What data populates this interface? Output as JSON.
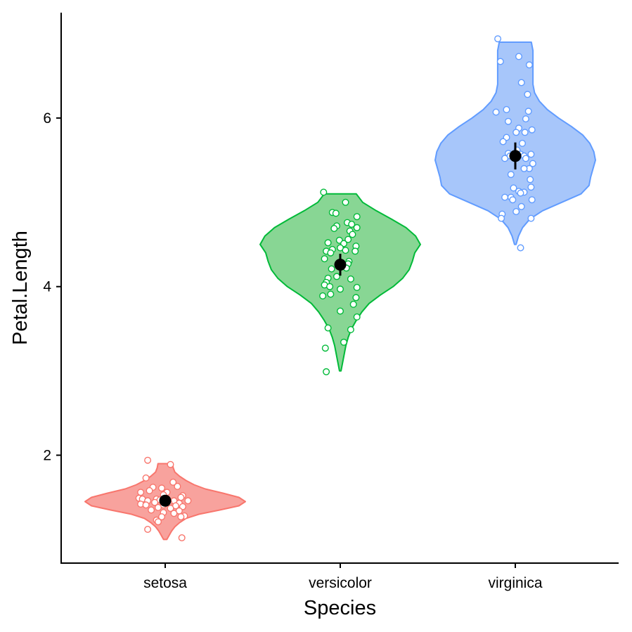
{
  "chart_data": {
    "type": "violin",
    "xlabel": "Species",
    "ylabel": "Petal.Length",
    "categories": [
      "setosa",
      "versicolor",
      "virginica"
    ],
    "ylim": [
      0.72,
      7.25
    ],
    "yticks": [
      2,
      4,
      6
    ],
    "grid": false,
    "legend": "none",
    "series": [
      {
        "category": "setosa",
        "color": "#F8766D",
        "fill": "#F8A29D",
        "mean": 1.46,
        "ci": [
          1.41,
          1.51
        ],
        "range": [
          1.0,
          1.9
        ],
        "density_profile": [
          [
            1.0,
            0.02
          ],
          [
            1.05,
            0.05
          ],
          [
            1.1,
            0.08
          ],
          [
            1.15,
            0.12
          ],
          [
            1.2,
            0.18
          ],
          [
            1.25,
            0.26
          ],
          [
            1.3,
            0.42
          ],
          [
            1.35,
            0.68
          ],
          [
            1.4,
            0.92
          ],
          [
            1.45,
            1.0
          ],
          [
            1.5,
            0.92
          ],
          [
            1.55,
            0.72
          ],
          [
            1.6,
            0.5
          ],
          [
            1.65,
            0.36
          ],
          [
            1.7,
            0.26
          ],
          [
            1.75,
            0.18
          ],
          [
            1.8,
            0.12
          ],
          [
            1.85,
            0.1
          ],
          [
            1.9,
            0.09
          ]
        ],
        "points": [
          [
            -0.2,
            1.94
          ],
          [
            0.06,
            1.89
          ],
          [
            -0.22,
            1.73
          ],
          [
            0.09,
            1.68
          ],
          [
            0.14,
            1.63
          ],
          [
            -0.14,
            1.62
          ],
          [
            -0.04,
            1.61
          ],
          [
            -0.18,
            1.58
          ],
          [
            -0.28,
            1.56
          ],
          [
            0.02,
            1.56
          ],
          [
            -0.02,
            1.53
          ],
          [
            0.2,
            1.52
          ],
          [
            0.18,
            1.5
          ],
          [
            -0.3,
            1.49
          ],
          [
            -0.26,
            1.48
          ],
          [
            -0.1,
            1.48
          ],
          [
            -0.06,
            1.47
          ],
          [
            -0.2,
            1.46
          ],
          [
            0.1,
            1.46
          ],
          [
            0.26,
            1.46
          ],
          [
            -0.12,
            1.44
          ],
          [
            0.04,
            1.44
          ],
          [
            0.16,
            1.43
          ],
          [
            -0.28,
            1.42
          ],
          [
            -0.22,
            1.41
          ],
          [
            -0.02,
            1.41
          ],
          [
            0.12,
            1.4
          ],
          [
            0.2,
            1.39
          ],
          [
            -0.08,
            1.38
          ],
          [
            0.06,
            1.37
          ],
          [
            -0.16,
            1.35
          ],
          [
            0.16,
            1.34
          ],
          [
            -0.02,
            1.32
          ],
          [
            0.1,
            1.31
          ],
          [
            0.22,
            1.28
          ],
          [
            -0.04,
            1.27
          ],
          [
            0.18,
            1.27
          ],
          [
            -0.1,
            1.23
          ],
          [
            -0.08,
            1.21
          ],
          [
            -0.2,
            1.12
          ],
          [
            0.19,
            1.02
          ]
        ]
      },
      {
        "category": "versicolor",
        "color": "#00BA38",
        "fill": "#88D694",
        "mean": 4.26,
        "ci": [
          4.13,
          4.39
        ],
        "range": [
          3.0,
          5.1
        ],
        "density_profile": [
          [
            3.0,
            0.01
          ],
          [
            3.1,
            0.03
          ],
          [
            3.2,
            0.05
          ],
          [
            3.3,
            0.07
          ],
          [
            3.4,
            0.1
          ],
          [
            3.5,
            0.14
          ],
          [
            3.6,
            0.2
          ],
          [
            3.7,
            0.27
          ],
          [
            3.8,
            0.36
          ],
          [
            3.9,
            0.5
          ],
          [
            4.0,
            0.66
          ],
          [
            4.1,
            0.78
          ],
          [
            4.2,
            0.86
          ],
          [
            4.3,
            0.9
          ],
          [
            4.4,
            0.93
          ],
          [
            4.5,
            1.0
          ],
          [
            4.6,
            0.94
          ],
          [
            4.7,
            0.82
          ],
          [
            4.8,
            0.64
          ],
          [
            4.9,
            0.45
          ],
          [
            5.0,
            0.28
          ],
          [
            5.1,
            0.2
          ]
        ],
        "points": [
          [
            -0.19,
            5.12
          ],
          [
            0.06,
            5.0
          ],
          [
            -0.09,
            4.88
          ],
          [
            -0.05,
            4.87
          ],
          [
            0.19,
            4.83
          ],
          [
            0.08,
            4.76
          ],
          [
            0.13,
            4.74
          ],
          [
            -0.04,
            4.72
          ],
          [
            0.19,
            4.7
          ],
          [
            -0.07,
            4.69
          ],
          [
            0.11,
            4.66
          ],
          [
            0.14,
            4.62
          ],
          [
            0.09,
            4.56
          ],
          [
            -0.01,
            4.55
          ],
          [
            -0.14,
            4.52
          ],
          [
            0.04,
            4.51
          ],
          [
            0.18,
            4.48
          ],
          [
            0.0,
            4.46
          ],
          [
            -0.09,
            4.44
          ],
          [
            0.06,
            4.43
          ],
          [
            -0.16,
            4.42
          ],
          [
            0.17,
            4.42
          ],
          [
            -0.11,
            4.4
          ],
          [
            -0.18,
            4.33
          ],
          [
            0.1,
            4.3
          ],
          [
            0.09,
            4.27
          ],
          [
            0.07,
            4.22
          ],
          [
            -0.1,
            4.21
          ],
          [
            -0.04,
            4.12
          ],
          [
            -0.14,
            4.1
          ],
          [
            0.12,
            4.09
          ],
          [
            -0.16,
            4.05
          ],
          [
            -0.18,
            4.02
          ],
          [
            -0.12,
            4.0
          ],
          [
            0.19,
            3.99
          ],
          [
            0.0,
            3.97
          ],
          [
            -0.11,
            3.91
          ],
          [
            -0.2,
            3.89
          ],
          [
            0.18,
            3.87
          ],
          [
            0.15,
            3.79
          ],
          [
            0.0,
            3.71
          ],
          [
            0.19,
            3.64
          ],
          [
            -0.14,
            3.51
          ],
          [
            0.12,
            3.49
          ],
          [
            0.04,
            3.34
          ],
          [
            -0.17,
            3.27
          ],
          [
            -0.16,
            2.99
          ]
        ]
      },
      {
        "category": "virginica",
        "color": "#619CFF",
        "fill": "#A7C6FA",
        "mean": 5.55,
        "ci": [
          5.39,
          5.71
        ],
        "range": [
          4.5,
          6.9
        ],
        "density_profile": [
          [
            4.5,
            0.01
          ],
          [
            4.6,
            0.04
          ],
          [
            4.7,
            0.09
          ],
          [
            4.8,
            0.18
          ],
          [
            4.9,
            0.34
          ],
          [
            5.0,
            0.58
          ],
          [
            5.1,
            0.82
          ],
          [
            5.2,
            0.92
          ],
          [
            5.3,
            0.94
          ],
          [
            5.4,
            0.97
          ],
          [
            5.5,
            1.0
          ],
          [
            5.6,
            0.98
          ],
          [
            5.7,
            0.93
          ],
          [
            5.8,
            0.84
          ],
          [
            5.9,
            0.7
          ],
          [
            6.0,
            0.54
          ],
          [
            6.1,
            0.4
          ],
          [
            6.2,
            0.3
          ],
          [
            6.3,
            0.24
          ],
          [
            6.4,
            0.22
          ],
          [
            6.5,
            0.22
          ],
          [
            6.6,
            0.22
          ],
          [
            6.7,
            0.22
          ],
          [
            6.8,
            0.22
          ],
          [
            6.9,
            0.2
          ]
        ],
        "points": [
          [
            -0.2,
            6.94
          ],
          [
            0.04,
            6.73
          ],
          [
            -0.17,
            6.67
          ],
          [
            0.16,
            6.63
          ],
          [
            0.07,
            6.42
          ],
          [
            0.14,
            6.28
          ],
          [
            -0.1,
            6.1
          ],
          [
            -0.22,
            6.07
          ],
          [
            0.15,
            6.08
          ],
          [
            0.12,
            5.99
          ],
          [
            -0.08,
            5.96
          ],
          [
            0.04,
            5.88
          ],
          [
            0.19,
            5.86
          ],
          [
            0.11,
            5.83
          ],
          [
            0.01,
            5.83
          ],
          [
            -0.1,
            5.77
          ],
          [
            -0.14,
            5.72
          ],
          [
            0.08,
            5.7
          ],
          [
            0.02,
            5.62
          ],
          [
            -0.08,
            5.58
          ],
          [
            0.06,
            5.57
          ],
          [
            0.18,
            5.57
          ],
          [
            -0.06,
            5.55
          ],
          [
            0.1,
            5.55
          ],
          [
            0.12,
            5.52
          ],
          [
            -0.12,
            5.52
          ],
          [
            0.2,
            5.46
          ],
          [
            0.16,
            5.4
          ],
          [
            0.1,
            5.4
          ],
          [
            -0.05,
            5.33
          ],
          [
            0.17,
            5.27
          ],
          [
            0.18,
            5.18
          ],
          [
            -0.02,
            5.17
          ],
          [
            0.04,
            5.13
          ],
          [
            0.1,
            5.12
          ],
          [
            0.06,
            5.11
          ],
          [
            -0.05,
            5.06
          ],
          [
            -0.12,
            5.06
          ],
          [
            0.19,
            5.03
          ],
          [
            -0.03,
            5.03
          ],
          [
            0.07,
            4.95
          ],
          [
            0.01,
            4.89
          ],
          [
            -0.15,
            4.86
          ],
          [
            -0.16,
            4.81
          ],
          [
            0.18,
            4.81
          ],
          [
            0.06,
            4.46
          ]
        ]
      }
    ]
  }
}
